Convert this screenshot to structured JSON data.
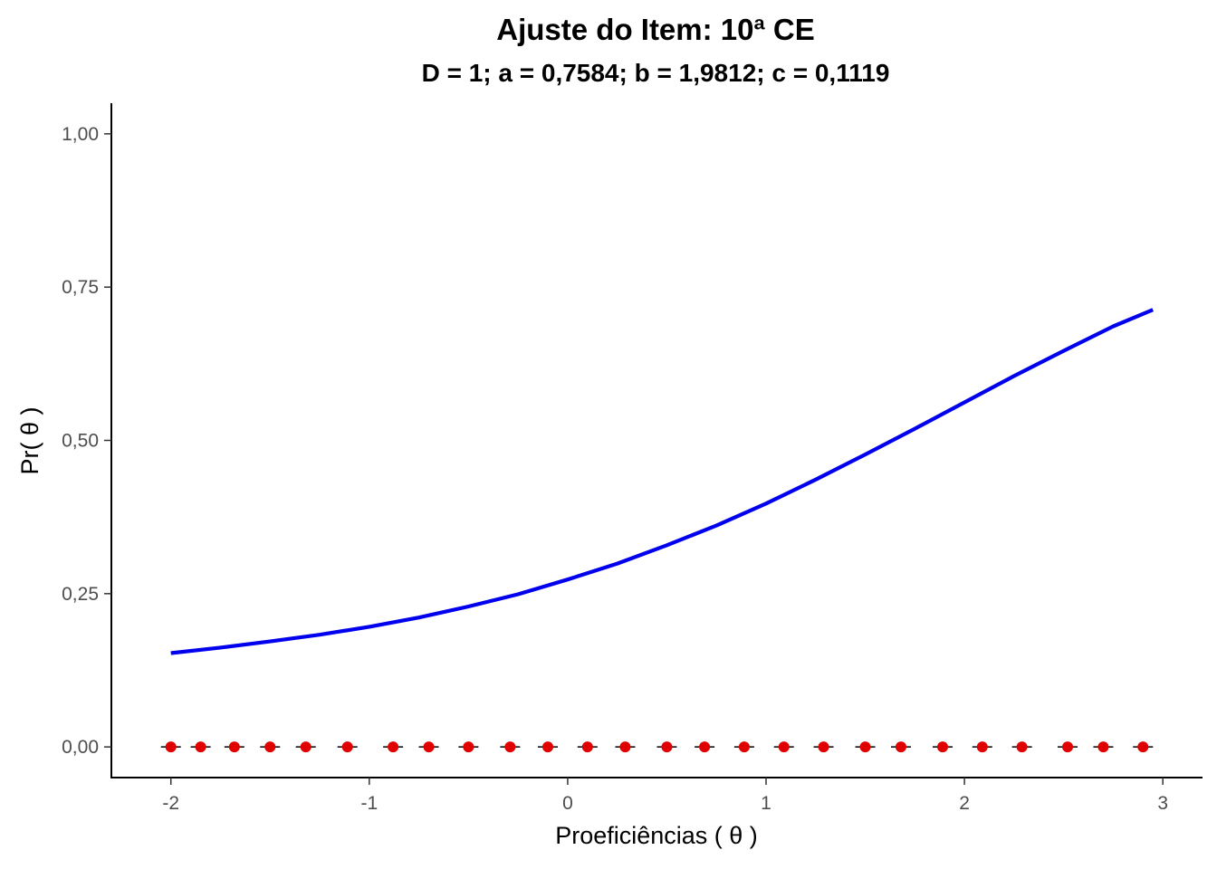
{
  "chart_data": {
    "type": "line",
    "title": "Ajuste do Item: 10ª CE",
    "subtitle": "D = 1; a = 0,7584; b = 1,9812; c = 0,1119",
    "xlabel": "Proeficiências ( θ )",
    "ylabel": "Pr( θ )",
    "xlim": [
      -2.3,
      3.2
    ],
    "ylim": [
      -0.05,
      1.05
    ],
    "x_ticks": [
      -2,
      -1,
      0,
      1,
      2,
      3
    ],
    "x_tick_labels": [
      "-2",
      "-1",
      "0",
      "1",
      "2",
      "3"
    ],
    "y_ticks": [
      0,
      0.25,
      0.5,
      0.75,
      1.0
    ],
    "y_tick_labels": [
      "0,00",
      "0,25",
      "0,50",
      "0,75",
      "1,00"
    ],
    "grid": false,
    "legend": "none",
    "series": [
      {
        "kind": "line",
        "color": "#0000ee",
        "x": [
          -2.0,
          -1.75,
          -1.5,
          -1.25,
          -1.0,
          -0.75,
          -0.5,
          -0.25,
          0.0,
          0.25,
          0.5,
          0.75,
          1.0,
          1.25,
          1.5,
          1.75,
          2.0,
          2.25,
          2.5,
          2.75,
          2.95
        ],
        "y": [
          0.153,
          0.162,
          0.172,
          0.183,
          0.196,
          0.211,
          0.229,
          0.249,
          0.273,
          0.299,
          0.329,
          0.361,
          0.397,
          0.436,
          0.477,
          0.519,
          0.562,
          0.605,
          0.646,
          0.686,
          0.713
        ]
      },
      {
        "kind": "points",
        "color": "#e00000",
        "x": [
          -2.0,
          -1.85,
          -1.68,
          -1.5,
          -1.32,
          -1.11,
          -0.88,
          -0.7,
          -0.5,
          -0.29,
          -0.1,
          0.1,
          0.29,
          0.5,
          0.69,
          0.89,
          1.09,
          1.29,
          1.5,
          1.68,
          1.89,
          2.09,
          2.29,
          2.52,
          2.7,
          2.9
        ],
        "y": [
          0,
          0,
          0,
          0,
          0,
          0,
          0,
          0,
          0,
          0,
          0,
          0,
          0,
          0,
          0,
          0,
          0,
          0,
          0,
          0,
          0,
          0,
          0,
          0,
          0,
          0
        ]
      }
    ]
  }
}
